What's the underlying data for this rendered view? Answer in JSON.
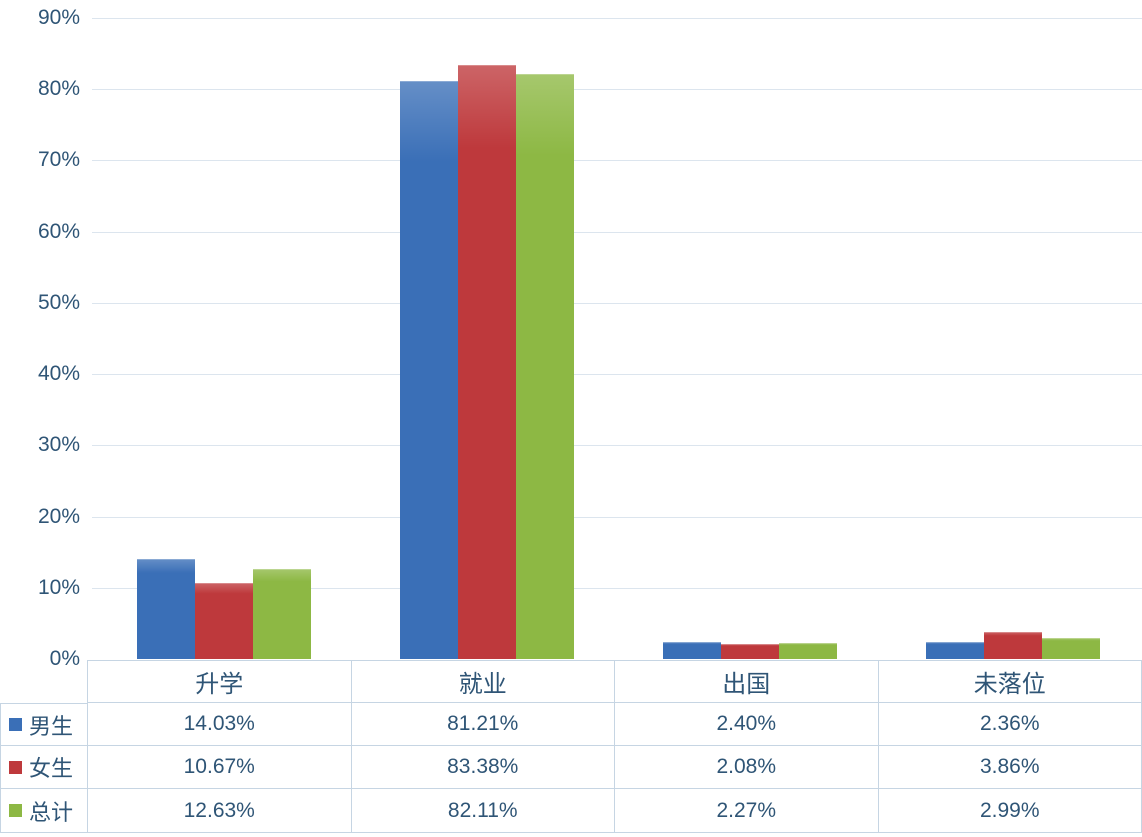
{
  "chart_data": {
    "type": "bar",
    "title": "",
    "xlabel": "",
    "ylabel": "",
    "categories": [
      "升学",
      "就业",
      "出国",
      "未落位"
    ],
    "series": [
      {
        "name": "男生",
        "color": "#3A6FB7",
        "values": [
          14.03,
          81.21,
          2.4,
          2.36
        ]
      },
      {
        "name": "女生",
        "color": "#BE393C",
        "values": [
          10.67,
          83.38,
          2.08,
          3.86
        ]
      },
      {
        "name": "总计",
        "color": "#8DB844",
        "values": [
          12.63,
          82.11,
          2.27,
          2.99
        ]
      }
    ],
    "ylim": [
      0,
      90
    ],
    "ytick_labels": [
      "90%",
      "80%",
      "70%",
      "60%",
      "50%",
      "40%",
      "30%",
      "20%",
      "10%",
      "0%"
    ],
    "grid": true,
    "legend_position": "left column of data table below chart"
  },
  "table": {
    "col_headers": [
      "升学",
      "就业",
      "出国",
      "未落位"
    ],
    "rows": [
      {
        "legend": "男生",
        "color": "#3A6FB7",
        "cells": [
          "14.03%",
          "81.21%",
          "2.40%",
          "2.36%"
        ]
      },
      {
        "legend": "女生",
        "color": "#BE393C",
        "cells": [
          "10.67%",
          "83.38%",
          "2.08%",
          "3.86%"
        ]
      },
      {
        "legend": "总计",
        "color": "#8DB844",
        "cells": [
          "12.63%",
          "82.11%",
          "2.27%",
          "2.99%"
        ]
      }
    ]
  },
  "colors": {
    "male_series": "#3A6FB7",
    "female_series": "#BE393C",
    "total_series": "#8DB844",
    "text": "#2F5576",
    "gridline": "#DCE5EE",
    "table_border": "#C6D5E3"
  }
}
